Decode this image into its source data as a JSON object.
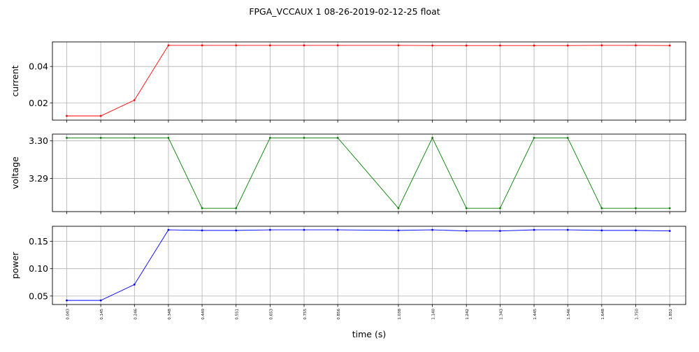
{
  "title": "FPGA_VCCAUX   1   08-26-2019-02-12-25   float",
  "xlabel": "time (s)",
  "chart_data": {
    "type": "line",
    "title": "FPGA_VCCAUX   1   08-26-2019-02-12-25   float",
    "xlabel": "time (s)",
    "x": [
      0.043,
      0.145,
      0.246,
      0.348,
      0.449,
      0.551,
      0.653,
      0.755,
      0.856,
      1.038,
      1.14,
      1.242,
      1.343,
      1.445,
      1.546,
      1.648,
      1.75,
      1.852
    ],
    "x_tick_labels": [
      "0.043",
      "0.145",
      "0.246",
      "0.348",
      "0.449",
      "0.551",
      "0.653",
      "0.755",
      "0.856",
      "1.038",
      "1.140",
      "1.242",
      "1.343",
      "1.445",
      "1.546",
      "1.648",
      "1.750",
      "1.852"
    ],
    "xlim": [
      0.0,
      1.9
    ],
    "grid": true,
    "panels": [
      {
        "ylabel": "current",
        "color": "#ff0000",
        "ylim": [
          0.0105,
          0.0535
        ],
        "y_ticks": [
          0.02,
          0.04
        ],
        "y_tick_labels": [
          "0.02",
          "0.04"
        ],
        "values": [
          0.0128,
          0.0128,
          0.0215,
          0.0516,
          0.0516,
          0.0516,
          0.0516,
          0.0516,
          0.0516,
          0.0516,
          0.0515,
          0.0515,
          0.0515,
          0.0515,
          0.0515,
          0.0516,
          0.0516,
          0.0515
        ]
      },
      {
        "ylabel": "voltage",
        "color": "#008000",
        "ylim": [
          3.2812,
          3.3018
        ],
        "y_ticks": [
          3.29,
          3.3
        ],
        "y_tick_labels": [
          "3.29",
          "3.30"
        ],
        "values": [
          3.3008,
          3.3008,
          3.3008,
          3.3008,
          3.2821,
          3.2821,
          3.3008,
          3.3008,
          3.3008,
          3.2821,
          3.3008,
          3.2821,
          3.2821,
          3.3008,
          3.3008,
          3.2821,
          3.2821,
          3.2821
        ]
      },
      {
        "ylabel": "power",
        "color": "#0000ff",
        "ylim": [
          0.0345,
          0.1775
        ],
        "y_ticks": [
          0.05,
          0.1,
          0.15
        ],
        "y_tick_labels": [
          "0.05",
          "0.10",
          "0.15"
        ],
        "values": [
          0.042,
          0.042,
          0.071,
          0.171,
          0.17,
          0.17,
          0.171,
          0.171,
          0.171,
          0.17,
          0.171,
          0.169,
          0.169,
          0.171,
          0.171,
          0.17,
          0.17,
          0.169
        ]
      }
    ]
  }
}
